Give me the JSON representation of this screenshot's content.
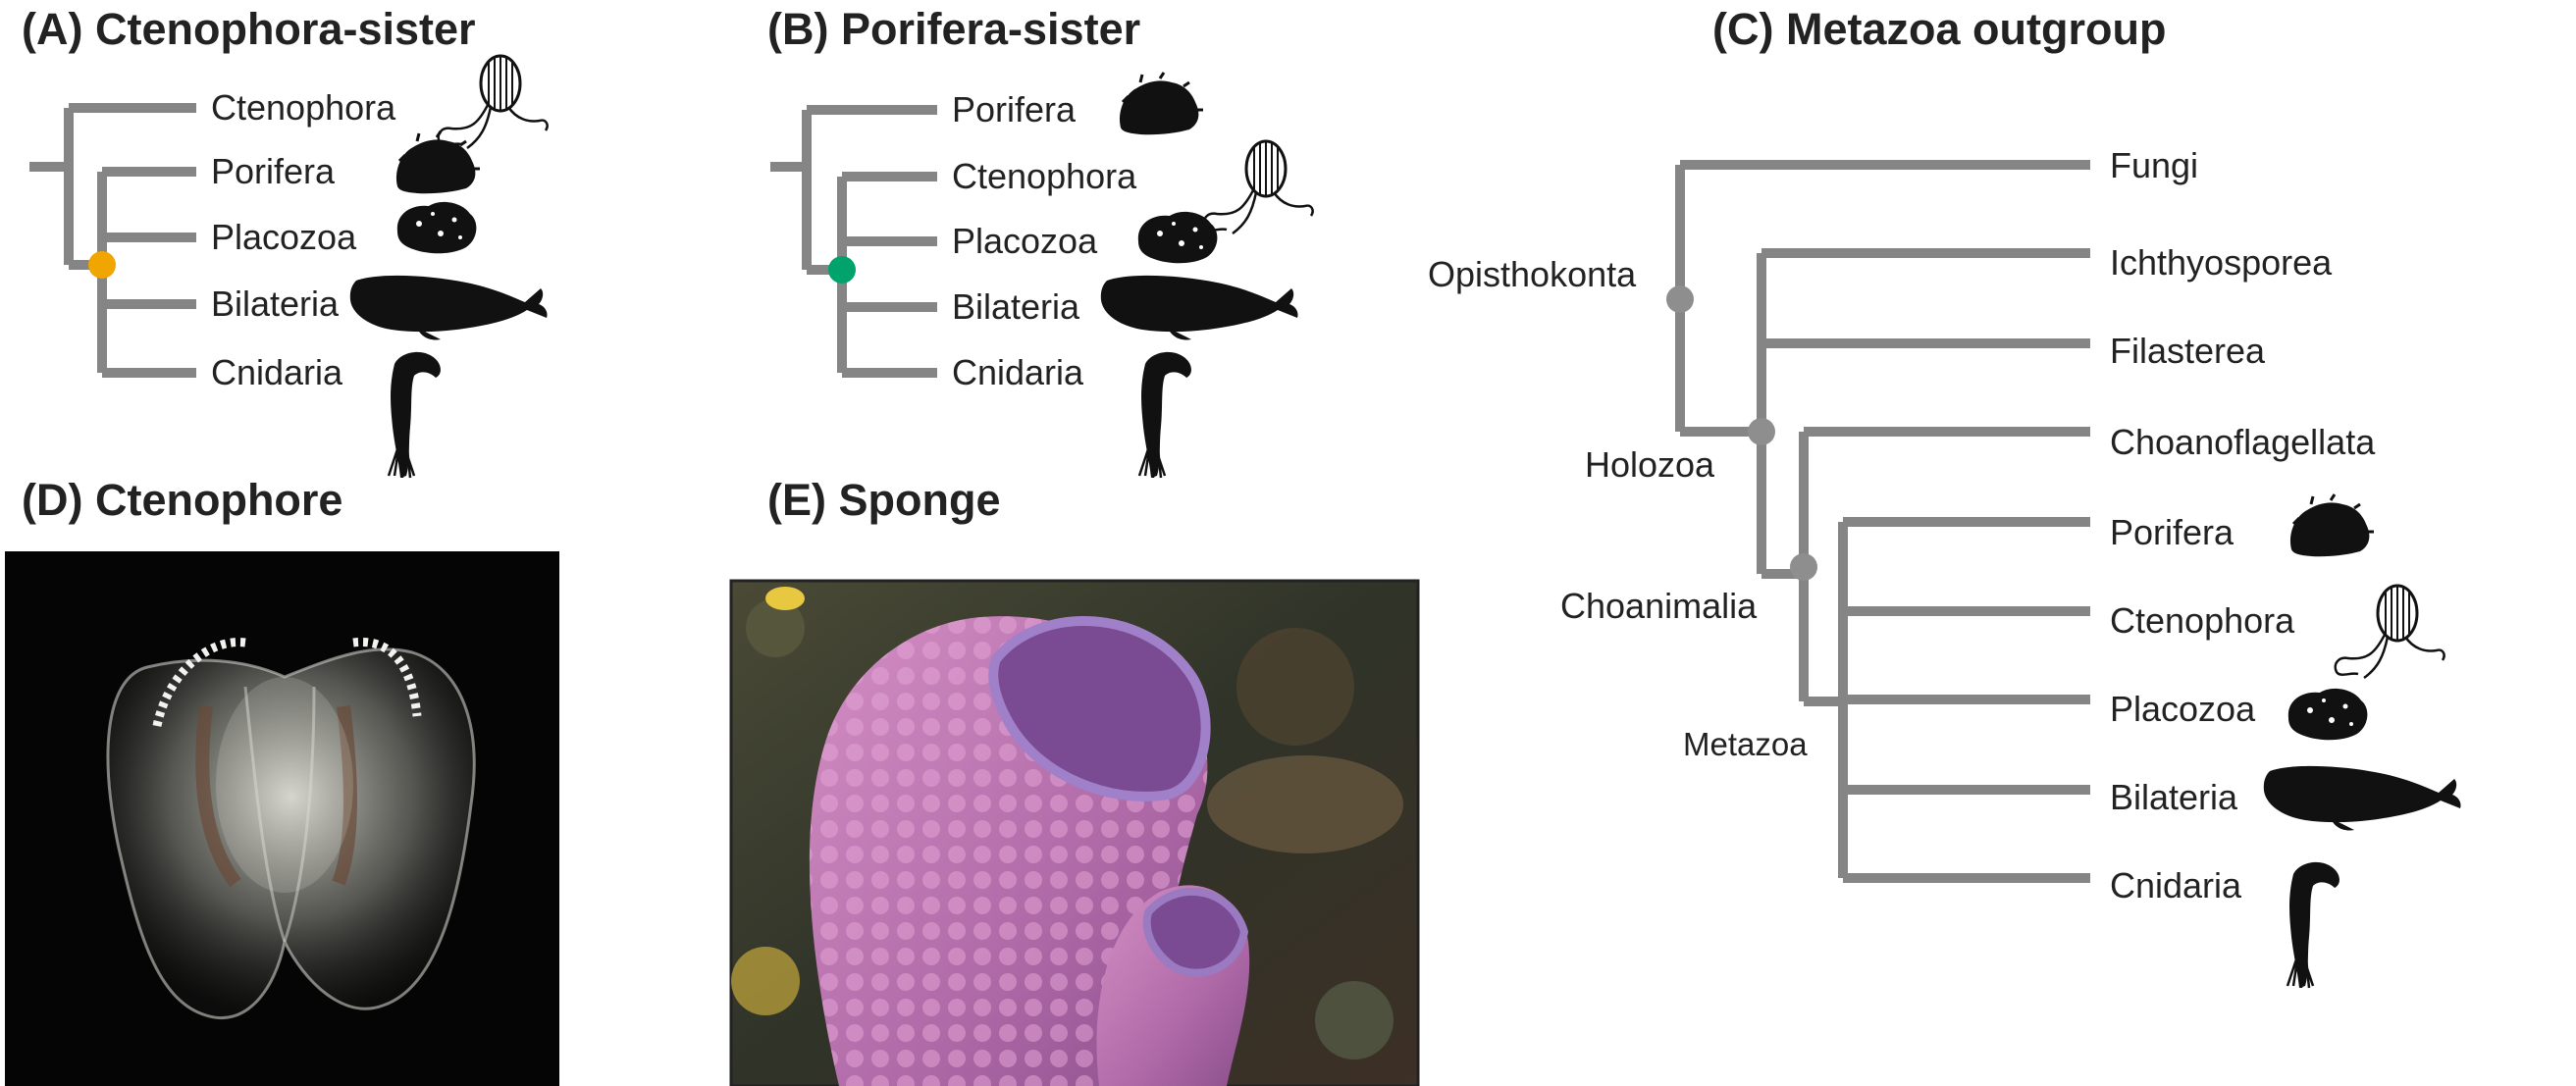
{
  "panels": {
    "a": {
      "title": "(A) Ctenophora-sister",
      "node_color": "#f0a500",
      "taxa": [
        "Ctenophora",
        "Porifera",
        "Placozoa",
        "Bilateria",
        "Cnidaria"
      ]
    },
    "b": {
      "title": "(B) Porifera-sister",
      "node_color": "#00a36c",
      "taxa": [
        "Porifera",
        "Ctenophora",
        "Placozoa",
        "Bilateria",
        "Cnidaria"
      ]
    },
    "c": {
      "title": "(C) Metazoa outgroup",
      "node_color": "#8e8e8e",
      "taxa": [
        "Fungi",
        "Ichthyosporea",
        "Filasterea",
        "Choanoflagellata",
        "Porifera",
        "Ctenophora",
        "Placozoa",
        "Bilateria",
        "Cnidaria"
      ],
      "clades": [
        "Opisthokonta",
        "Holozoa",
        "Choanimalia",
        "Metazoa"
      ]
    },
    "d": {
      "title": "(D) Ctenophore"
    },
    "e": {
      "title": "(E) Sponge"
    }
  },
  "colors": {
    "branch": "#858585",
    "silhouette": "#111111",
    "photo_background_d": "#050505",
    "sponge_purple": "#b87ab8",
    "reef_background": "#3b3a2c"
  },
  "icons": [
    "comb-jelly-icon",
    "sponge-icon",
    "placozoan-icon",
    "whale-icon",
    "cnidarian-icon"
  ]
}
